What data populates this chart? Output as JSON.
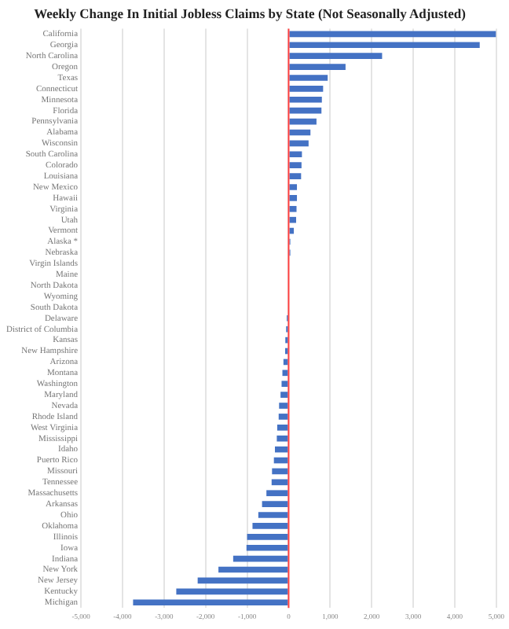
{
  "chart_data": {
    "type": "bar",
    "orientation": "horizontal",
    "title": "Weekly Change In Initial Jobless Claims by State (Not Seasonally Adjusted)",
    "categories": [
      "California",
      "Georgia",
      "North Carolina",
      "Oregon",
      "Texas",
      "Connecticut",
      "Minnesota",
      "Florida",
      "Pennsylvania",
      "Alabama",
      "Wisconsin",
      "South Carolina",
      "Colorado",
      "Louisiana",
      "New Mexico",
      "Hawaii",
      "Virginia",
      "Utah",
      "Vermont",
      "Alaska *",
      "Nebraska",
      "Virgin Islands",
      "Maine",
      "North Dakota",
      "Wyoming",
      "South Dakota",
      "Delaware",
      "District of Columbia",
      "Kansas",
      "New Hampshire",
      "Arizona",
      "Montana",
      "Washington",
      "Maryland",
      "Nevada",
      "Rhode Island",
      "West Virginia",
      "Mississippi",
      "Idaho",
      "Puerto Rico",
      "Missouri",
      "Tennessee",
      "Massachusetts",
      "Arkansas",
      "Ohio",
      "Oklahoma",
      "Illinois",
      "Iowa",
      "Indiana",
      "New York",
      "New Jersey",
      "Kentucky",
      "Michigan"
    ],
    "values": [
      4990,
      4600,
      2250,
      1370,
      940,
      830,
      800,
      790,
      670,
      525,
      480,
      320,
      310,
      300,
      200,
      200,
      190,
      180,
      125,
      40,
      40,
      null,
      null,
      null,
      null,
      null,
      -45,
      -60,
      -80,
      -85,
      -125,
      -150,
      -170,
      -195,
      -230,
      -240,
      -275,
      -285,
      -330,
      -355,
      -400,
      -410,
      -535,
      -640,
      -730,
      -870,
      -1000,
      -1015,
      -1335,
      -1690,
      -2190,
      -2705,
      -3745
    ],
    "color": "#4472c4",
    "xlim": [
      -5000,
      5000
    ],
    "xticks": [
      {
        "value": -5000,
        "label": "-5,000"
      },
      {
        "value": -4000,
        "label": "-4,000"
      },
      {
        "value": -3000,
        "label": "-3,000"
      },
      {
        "value": -2000,
        "label": "-2,000"
      },
      {
        "value": -1000,
        "label": "-1,000"
      },
      0,
      {
        "value": 1000,
        "label": "1,000"
      },
      {
        "value": 2000,
        "label": "2,000"
      },
      {
        "value": 3000,
        "label": "3,000"
      },
      {
        "value": 4000,
        "label": "4,000"
      },
      {
        "value": 5000,
        "label": "5,000"
      }
    ],
    "grid": "x",
    "legend": false,
    "ref_lines": [
      {
        "axis": "x",
        "value": 0,
        "color": "#ff4040"
      }
    ]
  }
}
